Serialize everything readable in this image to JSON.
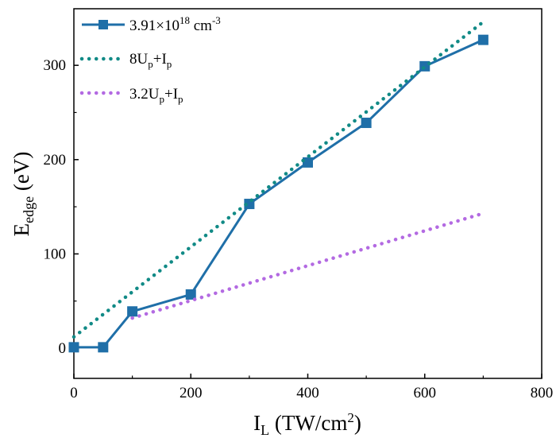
{
  "chart_data": {
    "type": "line",
    "title": "",
    "xlabel": {
      "main": "I",
      "sub": "L",
      "rest": " (TW/cm",
      "sup": "2",
      "end": ")"
    },
    "ylabel": {
      "main": "E",
      "sub": "edge",
      "rest": " (eV)"
    },
    "xlim": [
      0,
      800
    ],
    "ylim": [
      -32,
      360
    ],
    "xticks": [
      0,
      200,
      400,
      600,
      800
    ],
    "yticks": [
      0,
      100,
      200,
      300
    ],
    "xtick_labels": [
      "0",
      "200",
      "400",
      "600",
      "800"
    ],
    "ytick_labels": [
      "0",
      "100",
      "200",
      "300"
    ],
    "grid": false,
    "legend_position": "top-left",
    "series": [
      {
        "name": "3.91×10^18 cm^-3",
        "legend": {
          "base": "3.91×10",
          "sup1": "18",
          "mid": " cm",
          "sup2": "-3"
        },
        "style": "line-square",
        "color": "#1f6fa8",
        "x": [
          0,
          50,
          100,
          200,
          300,
          400,
          500,
          600,
          700
        ],
        "y": [
          1,
          1,
          39,
          57,
          153,
          197,
          239,
          299,
          327
        ]
      },
      {
        "name": "8Up+Ip",
        "legend": {
          "a": "8U",
          "b": "p",
          "c": "+I",
          "d": "p"
        },
        "style": "dotted",
        "color": "#118a86",
        "x": [
          0,
          700
        ],
        "y": [
          12,
          346
        ]
      },
      {
        "name": "3.2Up+Ip",
        "legend": {
          "a": "3.2U",
          "b": "p",
          "c": "+I",
          "d": "p"
        },
        "style": "dotted",
        "color": "#b36ae2",
        "x": [
          100,
          700
        ],
        "y": [
          32,
          143
        ]
      }
    ]
  }
}
